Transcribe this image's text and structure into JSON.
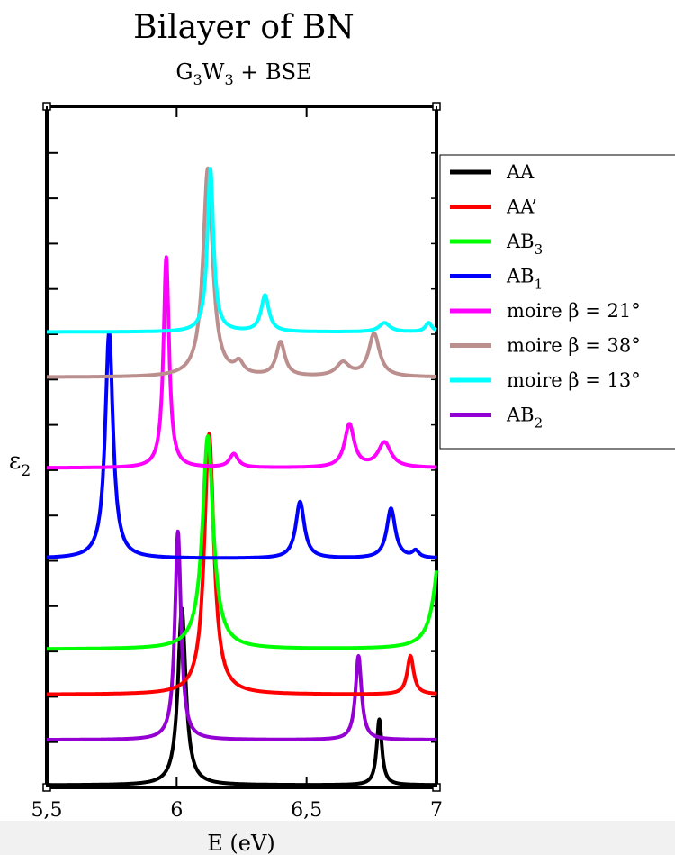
{
  "chart_data": {
    "type": "line",
    "title": "Bilayer of BN",
    "subtitle": {
      "parts": [
        "G",
        "3",
        "W",
        "3",
        " + BSE"
      ]
    },
    "xlabel": "E (eV)",
    "ylabel": {
      "main": "ε",
      "sub": "2"
    },
    "xlim": [
      5.5,
      7.0
    ],
    "xticks": [
      "5,5",
      "6",
      "6,5",
      "7"
    ],
    "xtick_values": [
      5.5,
      6.0,
      6.5,
      7.0
    ],
    "ytick_count": 14,
    "ylim": [
      0,
      14.5
    ],
    "legend_position": "right",
    "series": [
      {
        "name": "AA",
        "sub": "",
        "prefix": "",
        "color": "#000000",
        "offset": 0,
        "baseline": 0.05,
        "peaks": [
          [
            6.02,
            3.9,
            0.018
          ],
          [
            6.78,
            1.45,
            0.012
          ]
        ]
      },
      {
        "name": "AA’",
        "sub": "",
        "prefix": "",
        "color": "#ff0000",
        "offset": 2.0,
        "baseline": 0.05,
        "peaks": [
          [
            6.125,
            5.75,
            0.022
          ],
          [
            6.9,
            0.85,
            0.015
          ]
        ]
      },
      {
        "name": "AB",
        "sub": "3",
        "prefix": "",
        "color": "#00ff00",
        "offset": 3.0,
        "baseline": 0.05,
        "peaks": [
          [
            6.12,
            4.7,
            0.025
          ],
          [
            7.02,
            2.5,
            0.03
          ]
        ]
      },
      {
        "name": "AB",
        "sub": "1",
        "prefix": "",
        "color": "#0000ff",
        "offset": 5.0,
        "baseline": 0.05,
        "peaks": [
          [
            5.74,
            5.0,
            0.018
          ],
          [
            6.475,
            1.25,
            0.02
          ],
          [
            6.825,
            1.1,
            0.02
          ],
          [
            6.92,
            0.15,
            0.015
          ]
        ]
      },
      {
        "name": "β = 21°",
        "sub": "",
        "prefix": "moire",
        "color": "#ff00ff",
        "offset": 7.0,
        "baseline": 0.05,
        "peaks": [
          [
            5.96,
            4.65,
            0.013
          ],
          [
            6.22,
            0.3,
            0.02
          ],
          [
            6.665,
            0.95,
            0.022
          ],
          [
            6.8,
            0.55,
            0.03
          ]
        ]
      },
      {
        "name": "β = 38°",
        "sub": "",
        "prefix": "moire",
        "color": "#bc8f8f",
        "offset": 9.0,
        "baseline": 0.05,
        "peaks": [
          [
            6.12,
            4.6,
            0.022
          ],
          [
            6.24,
            0.25,
            0.02
          ],
          [
            6.4,
            0.75,
            0.02
          ],
          [
            6.64,
            0.3,
            0.03
          ],
          [
            6.76,
            0.95,
            0.025
          ]
        ]
      },
      {
        "name": "β = 13°",
        "sub": "",
        "prefix": "moire",
        "color": "#00ffff",
        "offset": 10.0,
        "baseline": 0.05,
        "peaks": [
          [
            6.13,
            3.6,
            0.014
          ],
          [
            6.34,
            0.8,
            0.018
          ],
          [
            6.8,
            0.2,
            0.025
          ],
          [
            6.97,
            0.2,
            0.015
          ]
        ]
      },
      {
        "name": "AB",
        "sub": "2",
        "prefix": "",
        "color": "#9400d3",
        "offset": 1.0,
        "baseline": 0.05,
        "peaks": [
          [
            6.005,
            4.6,
            0.014
          ],
          [
            6.7,
            1.85,
            0.014
          ]
        ]
      }
    ]
  }
}
